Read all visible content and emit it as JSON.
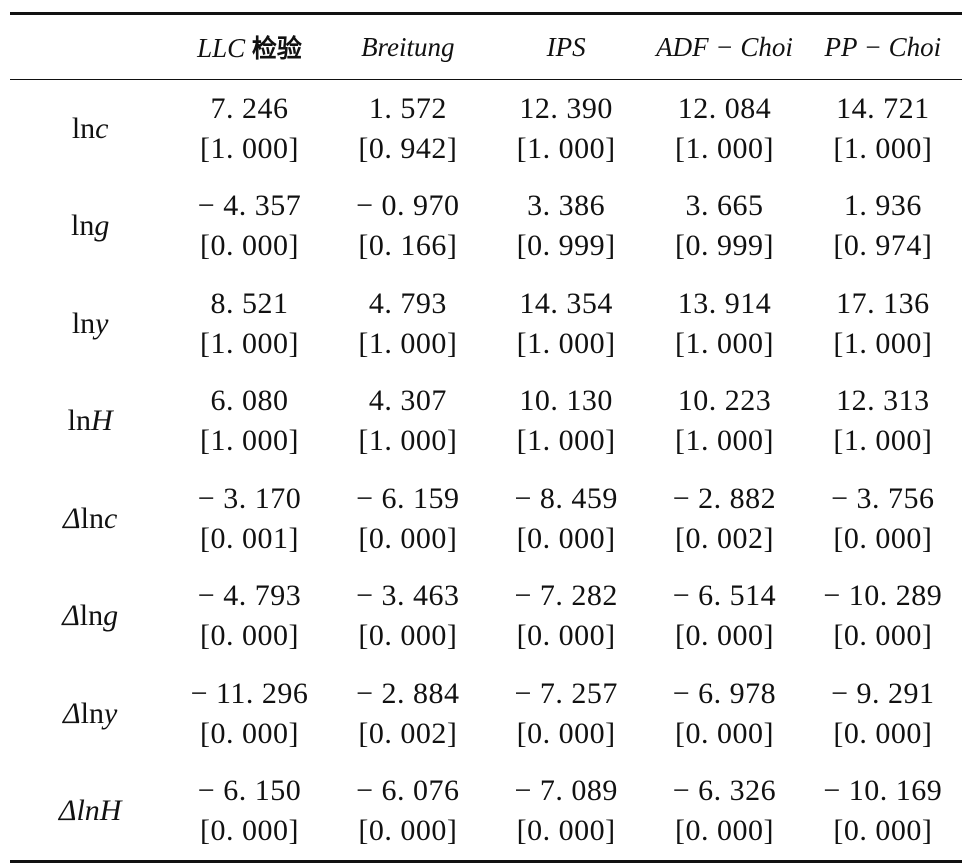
{
  "table": {
    "columns": [
      {
        "name_main": "LLC",
        "name_cjk": "检验"
      },
      {
        "name_main": "Breitung",
        "name_cjk": ""
      },
      {
        "name_main": "IPS",
        "name_cjk": ""
      },
      {
        "name_main": "ADF − Choi",
        "name_cjk": ""
      },
      {
        "name_main": "PP − Choi",
        "name_cjk": ""
      }
    ],
    "rows": [
      {
        "prefix": "",
        "ln": "ln",
        "var": "c",
        "cells": [
          {
            "v": "7. 246",
            "p": "[1. 000]"
          },
          {
            "v": "1. 572",
            "p": "[0. 942]"
          },
          {
            "v": "12. 390",
            "p": "[1. 000]"
          },
          {
            "v": "12. 084",
            "p": "[1. 000]"
          },
          {
            "v": "14. 721",
            "p": "[1. 000]"
          }
        ]
      },
      {
        "prefix": "",
        "ln": "ln",
        "var": "g",
        "cells": [
          {
            "v": "− 4. 357",
            "p": "[0. 000]"
          },
          {
            "v": "− 0. 970",
            "p": "[0. 166]"
          },
          {
            "v": "3. 386",
            "p": "[0. 999]"
          },
          {
            "v": "3. 665",
            "p": "[0. 999]"
          },
          {
            "v": "1. 936",
            "p": "[0. 974]"
          }
        ]
      },
      {
        "prefix": "",
        "ln": "ln",
        "var": "y",
        "cells": [
          {
            "v": "8. 521",
            "p": "[1. 000]"
          },
          {
            "v": "4. 793",
            "p": "[1. 000]"
          },
          {
            "v": "14. 354",
            "p": "[1. 000]"
          },
          {
            "v": "13. 914",
            "p": "[1. 000]"
          },
          {
            "v": "17. 136",
            "p": "[1. 000]"
          }
        ]
      },
      {
        "prefix": "",
        "ln": "ln",
        "var": "H",
        "cells": [
          {
            "v": "6. 080",
            "p": "[1. 000]"
          },
          {
            "v": "4. 307",
            "p": "[1. 000]"
          },
          {
            "v": "10. 130",
            "p": "[1. 000]"
          },
          {
            "v": "10. 223",
            "p": "[1. 000]"
          },
          {
            "v": "12. 313",
            "p": "[1. 000]"
          }
        ]
      },
      {
        "prefix": "Δ",
        "ln": "ln",
        "var": "c",
        "cells": [
          {
            "v": "− 3. 170",
            "p": "[0. 001]"
          },
          {
            "v": "− 6. 159",
            "p": "[0. 000]"
          },
          {
            "v": "− 8. 459",
            "p": "[0. 000]"
          },
          {
            "v": "− 2. 882",
            "p": "[0. 002]"
          },
          {
            "v": "− 3. 756",
            "p": "[0. 000]"
          }
        ]
      },
      {
        "prefix": "Δ",
        "ln": "ln",
        "var": "g",
        "cells": [
          {
            "v": "− 4. 793",
            "p": "[0. 000]"
          },
          {
            "v": "− 3. 463",
            "p": "[0. 000]"
          },
          {
            "v": "− 7. 282",
            "p": "[0. 000]"
          },
          {
            "v": "− 6. 514",
            "p": "[0. 000]"
          },
          {
            "v": "− 10. 289",
            "p": "[0. 000]"
          }
        ]
      },
      {
        "prefix": "Δ",
        "ln": "ln",
        "var": "y",
        "cells": [
          {
            "v": "− 11. 296",
            "p": "[0. 000]"
          },
          {
            "v": "− 2. 884",
            "p": "[0. 002]"
          },
          {
            "v": "− 7. 257",
            "p": "[0. 000]"
          },
          {
            "v": "− 6. 978",
            "p": "[0. 000]"
          },
          {
            "v": "− 9. 291",
            "p": "[0. 000]"
          }
        ]
      },
      {
        "prefix": "Δ",
        "ln": "",
        "var": "lnH",
        "cells": [
          {
            "v": "− 6. 150",
            "p": "[0. 000]"
          },
          {
            "v": "− 6. 076",
            "p": "[0. 000]"
          },
          {
            "v": "− 7. 089",
            "p": "[0. 000]"
          },
          {
            "v": "− 6. 326",
            "p": "[0. 000]"
          },
          {
            "v": "− 10. 169",
            "p": "[0. 000]"
          }
        ]
      }
    ]
  }
}
